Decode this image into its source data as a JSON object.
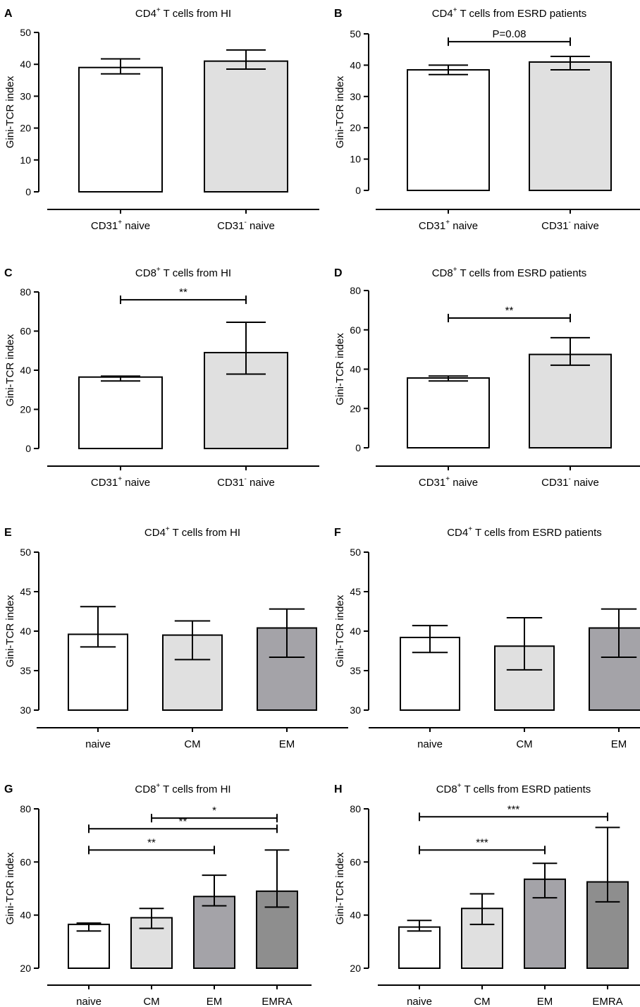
{
  "chart_data": [
    {
      "panel": "A",
      "type": "bar",
      "title_pre": "CD4",
      "title_sup": "+",
      "title_post": " T cells from HI",
      "ylabel": "Gini-TCR index",
      "ylim": [
        0,
        50
      ],
      "yticks": [
        0,
        10,
        20,
        30,
        40,
        50
      ],
      "categories": [
        {
          "pre": "CD31",
          "sup": "+",
          "post": " naive"
        },
        {
          "pre": "CD31",
          "sup": "-",
          "post": " naive"
        }
      ],
      "values": [
        39,
        41
      ],
      "err_low": [
        37,
        38.5
      ],
      "err_high": [
        41.7,
        44.5
      ],
      "bar_colors": [
        "#ffffff",
        "#e0e0e0"
      ],
      "significance": []
    },
    {
      "panel": "B",
      "type": "bar",
      "title_pre": "CD4",
      "title_sup": "+",
      "title_post": " T cells from ESRD patients",
      "ylabel": "Gini-TCR index",
      "ylim": [
        0,
        50
      ],
      "yticks": [
        0,
        10,
        20,
        30,
        40,
        50
      ],
      "categories": [
        {
          "pre": "CD31",
          "sup": "+",
          "post": " naive"
        },
        {
          "pre": "CD31",
          "sup": "-",
          "post": " naive"
        }
      ],
      "values": [
        38.5,
        41
      ],
      "err_low": [
        37,
        38.5
      ],
      "err_high": [
        40,
        42.8
      ],
      "bar_colors": [
        "#ffffff",
        "#e0e0e0"
      ],
      "significance": [
        {
          "from": 0,
          "to": 1,
          "y": 47.5,
          "label": "P=0.08"
        }
      ]
    },
    {
      "panel": "C",
      "type": "bar",
      "title_pre": "CD8",
      "title_sup": "+",
      "title_post": " T cells from HI",
      "ylabel": "Gini-TCR index",
      "ylim": [
        0,
        80
      ],
      "yticks": [
        0,
        20,
        40,
        60,
        80
      ],
      "categories": [
        {
          "pre": "CD31",
          "sup": "+",
          "post": " naive"
        },
        {
          "pre": "CD31",
          "sup": "-",
          "post": " naive"
        }
      ],
      "values": [
        36.5,
        49
      ],
      "err_low": [
        34.5,
        38
      ],
      "err_high": [
        37,
        64.5
      ],
      "bar_colors": [
        "#ffffff",
        "#e0e0e0"
      ],
      "significance": [
        {
          "from": 0,
          "to": 1,
          "y": 76,
          "label": "**"
        }
      ]
    },
    {
      "panel": "D",
      "type": "bar",
      "title_pre": "CD8",
      "title_sup": "+",
      "title_post": " T cells from ESRD patients",
      "ylabel": "Gini-TCR index",
      "ylim": [
        0,
        80
      ],
      "yticks": [
        0,
        20,
        40,
        60,
        80
      ],
      "categories": [
        {
          "pre": "CD31",
          "sup": "+",
          "post": " naive"
        },
        {
          "pre": "CD31",
          "sup": "-",
          "post": " naive"
        }
      ],
      "values": [
        35.5,
        47.5
      ],
      "err_low": [
        34,
        42
      ],
      "err_high": [
        36.5,
        56
      ],
      "bar_colors": [
        "#ffffff",
        "#e0e0e0"
      ],
      "significance": [
        {
          "from": 0,
          "to": 1,
          "y": 66,
          "label": "**"
        }
      ]
    },
    {
      "panel": "E",
      "type": "bar",
      "title_pre": "CD4",
      "title_sup": "+",
      "title_post": " T cells from HI",
      "ylabel": "Gini-TCR index",
      "ylim": [
        30,
        50
      ],
      "yticks": [
        30,
        35,
        40,
        45,
        50
      ],
      "categories": [
        {
          "pre": "naive",
          "sup": "",
          "post": ""
        },
        {
          "pre": "CM",
          "sup": "",
          "post": ""
        },
        {
          "pre": "EM",
          "sup": "",
          "post": ""
        }
      ],
      "values": [
        39.6,
        39.5,
        40.4
      ],
      "err_low": [
        38,
        36.4,
        36.7
      ],
      "err_high": [
        43.1,
        41.3,
        42.8
      ],
      "bar_colors": [
        "#ffffff",
        "#e0e0e0",
        "#a4a3a8"
      ],
      "significance": []
    },
    {
      "panel": "F",
      "type": "bar",
      "title_pre": "CD4",
      "title_sup": "+",
      "title_post": " T cells from ESRD patients",
      "ylabel": "Gini-TCR index",
      "ylim": [
        30,
        50
      ],
      "yticks": [
        30,
        35,
        40,
        45,
        50
      ],
      "categories": [
        {
          "pre": "naive",
          "sup": "",
          "post": ""
        },
        {
          "pre": "CM",
          "sup": "",
          "post": ""
        },
        {
          "pre": "EM",
          "sup": "",
          "post": ""
        }
      ],
      "values": [
        39.2,
        38.1,
        40.4
      ],
      "err_low": [
        37.3,
        35.1,
        36.7
      ],
      "err_high": [
        40.7,
        41.7,
        42.8
      ],
      "bar_colors": [
        "#ffffff",
        "#e0e0e0",
        "#a4a3a8"
      ],
      "significance": []
    },
    {
      "panel": "G",
      "type": "bar",
      "title_pre": "CD8",
      "title_sup": "+",
      "title_post": " T cells from HI",
      "ylabel": "Gini-TCR index",
      "ylim": [
        20,
        80
      ],
      "yticks": [
        20,
        40,
        60,
        80
      ],
      "categories": [
        {
          "pre": "naive",
          "sup": "",
          "post": ""
        },
        {
          "pre": "CM",
          "sup": "",
          "post": ""
        },
        {
          "pre": "EM",
          "sup": "",
          "post": ""
        },
        {
          "pre": "EMRA",
          "sup": "",
          "post": ""
        }
      ],
      "values": [
        36.5,
        39,
        47,
        49
      ],
      "err_low": [
        34,
        35,
        43.5,
        43
      ],
      "err_high": [
        37,
        42.5,
        55,
        64.5
      ],
      "bar_colors": [
        "#ffffff",
        "#e0e0e0",
        "#a4a3a8",
        "#8e8e8e"
      ],
      "significance": [
        {
          "from": 1,
          "to": 3,
          "y": 76.5,
          "label": "*"
        },
        {
          "from": 0,
          "to": 3,
          "y": 72.5,
          "label": "**"
        },
        {
          "from": 0,
          "to": 2,
          "y": 64.5,
          "label": "**"
        }
      ]
    },
    {
      "panel": "H",
      "type": "bar",
      "title_pre": "CD8",
      "title_sup": "+",
      "title_post": " T cells from ESRD patients",
      "ylabel": "Gini-TCR index",
      "ylim": [
        20,
        80
      ],
      "yticks": [
        20,
        40,
        60,
        80
      ],
      "categories": [
        {
          "pre": "naive",
          "sup": "",
          "post": ""
        },
        {
          "pre": "CM",
          "sup": "",
          "post": ""
        },
        {
          "pre": "EM",
          "sup": "",
          "post": ""
        },
        {
          "pre": "EMRA",
          "sup": "",
          "post": ""
        }
      ],
      "values": [
        35.5,
        42.5,
        53.5,
        52.5
      ],
      "err_low": [
        34,
        36.5,
        46.5,
        45
      ],
      "err_high": [
        38,
        48,
        59.5,
        73
      ],
      "bar_colors": [
        "#ffffff",
        "#e0e0e0",
        "#a4a3a8",
        "#8e8e8e"
      ],
      "significance": [
        {
          "from": 0,
          "to": 3,
          "y": 77,
          "label": "***"
        },
        {
          "from": 0,
          "to": 2,
          "y": 64.5,
          "label": "***"
        }
      ]
    }
  ]
}
